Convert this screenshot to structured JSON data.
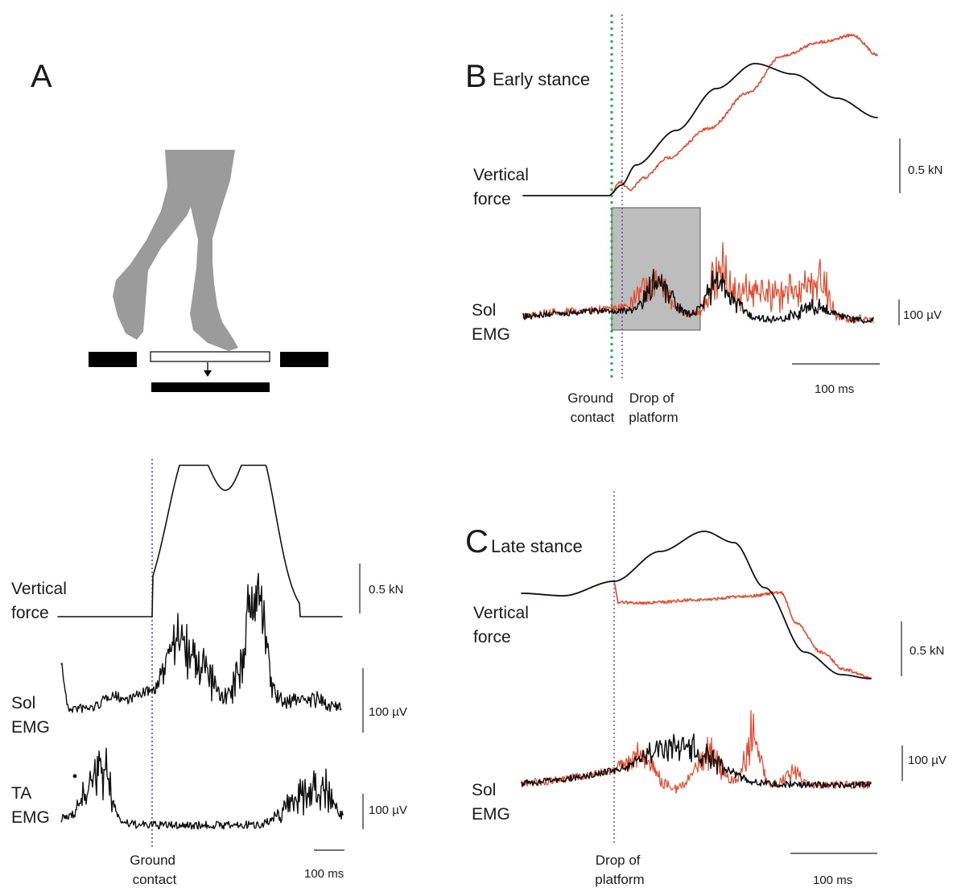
{
  "colors": {
    "control_trace": "#111111",
    "perturbed_trace": "#e8472b",
    "ground_contact_marker": "#22b14c",
    "drop_marker": "#4a3fa0",
    "figure_silhouette": "#9b9b9b",
    "analysis_window": "#bdbdbd"
  },
  "panels": {
    "a": {
      "letter": "A",
      "illustration": "walking-legs-on-drop-platform",
      "labels": {
        "vertical_force": [
          "Vertical",
          "force"
        ],
        "sol_emg": [
          "Sol",
          "EMG"
        ],
        "ta_emg": [
          "TA",
          "EMG"
        ],
        "ground_contact": [
          "Ground",
          "contact"
        ]
      },
      "scale": {
        "force": "0.5 kN",
        "sol": "100 µV",
        "ta": "100 µV",
        "time": "100 ms"
      }
    },
    "b": {
      "letter": "B",
      "title": "Early stance",
      "labels": {
        "vertical_force": [
          "Vertical",
          "force"
        ],
        "sol_emg": [
          "Sol",
          "EMG"
        ],
        "ground_contact": [
          "Ground",
          "contact"
        ],
        "drop": [
          "Drop of",
          "platform"
        ]
      },
      "scale": {
        "force": "0.5 kN",
        "emg": "100 µV",
        "time": "100 ms"
      }
    },
    "c": {
      "letter": "C",
      "title": "Late stance",
      "labels": {
        "vertical_force": [
          "Vertical",
          "force"
        ],
        "sol_emg": [
          "Sol",
          "EMG"
        ],
        "drop": [
          "Drop of",
          "platform"
        ]
      },
      "scale": {
        "force": "0.5 kN",
        "emg": "100 µV",
        "time": "100 ms"
      }
    }
  }
}
